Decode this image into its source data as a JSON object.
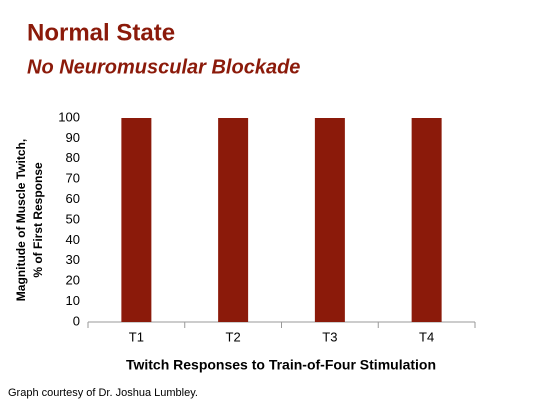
{
  "chart_data": {
    "type": "bar",
    "title": "Normal State",
    "subtitle": "No Neuromuscular Blockade",
    "ylabel": [
      "Magnitude of Muscle Twitch,",
      "% of First Response"
    ],
    "xlabel": "Twitch Responses to Train-of-Four Stimulation",
    "note": "Graph courtesy of Dr. Joshua Lumbley.",
    "categories": [
      "T1",
      "T2",
      "T3",
      "T4"
    ],
    "values": [
      100,
      100,
      100,
      100
    ],
    "color": "#8b1a0a",
    "ylim": [
      0,
      100
    ],
    "yticks": [
      0,
      10,
      20,
      30,
      40,
      50,
      60,
      70,
      80,
      90,
      100
    ],
    "grid": false
  }
}
